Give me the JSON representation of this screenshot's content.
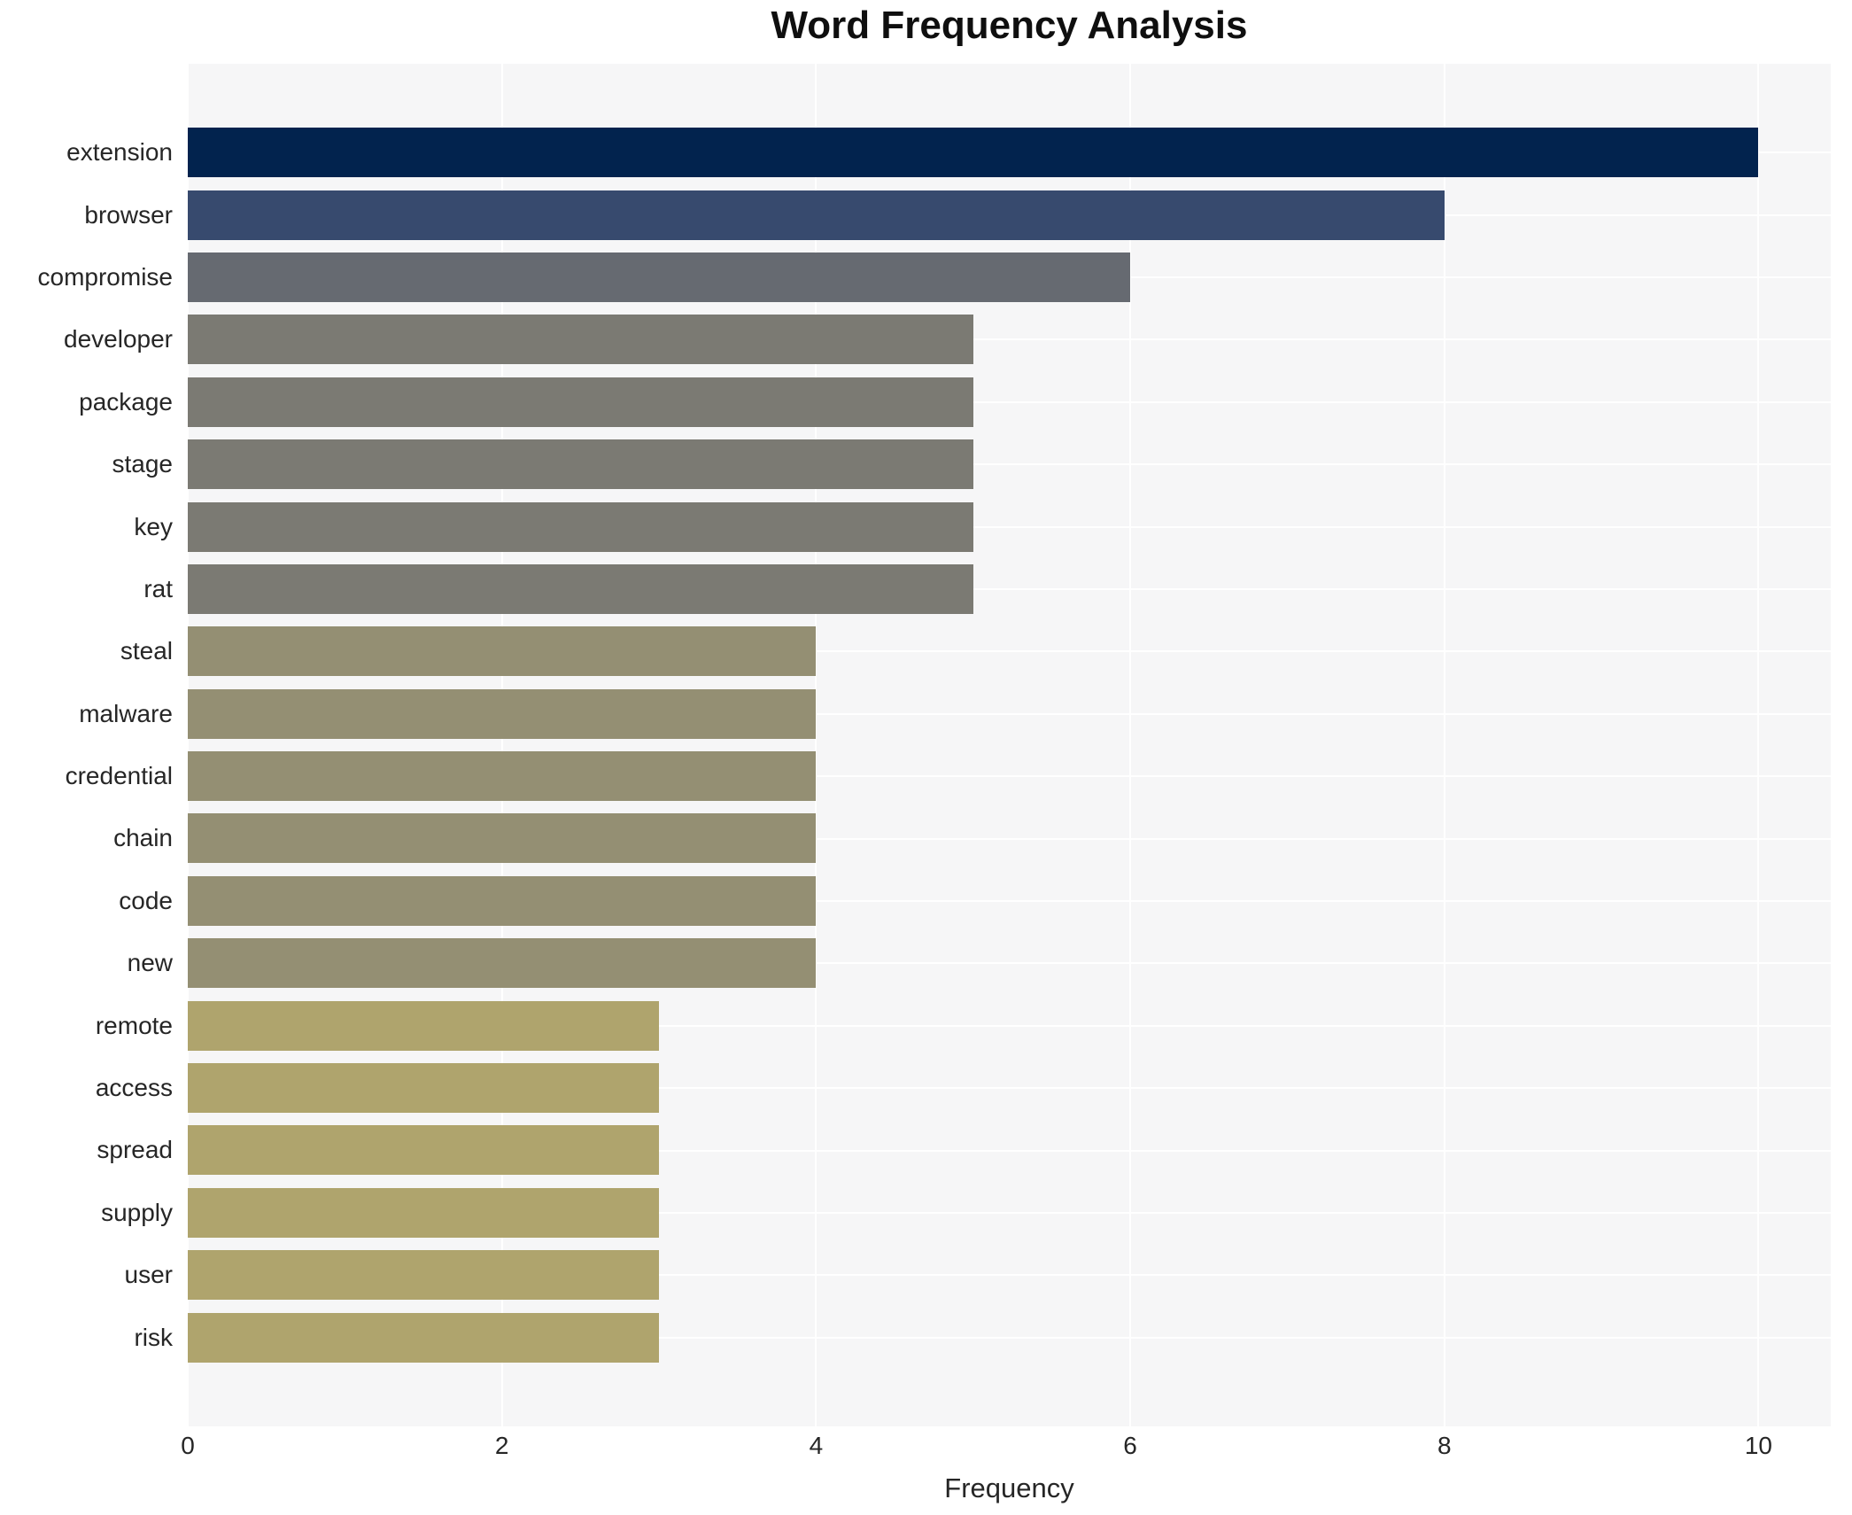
{
  "chart_data": {
    "type": "bar",
    "orientation": "horizontal",
    "title": "Word Frequency Analysis",
    "xlabel": "Frequency",
    "ylabel": "",
    "categories": [
      "extension",
      "browser",
      "compromise",
      "developer",
      "package",
      "stage",
      "key",
      "rat",
      "steal",
      "malware",
      "credential",
      "chain",
      "code",
      "new",
      "remote",
      "access",
      "spread",
      "supply",
      "user",
      "risk"
    ],
    "values": [
      10,
      8,
      6,
      5,
      5,
      5,
      5,
      5,
      4,
      4,
      4,
      4,
      4,
      4,
      3,
      3,
      3,
      3,
      3,
      3
    ],
    "bar_colors": [
      "#02234e",
      "#374a6e",
      "#666a71",
      "#7b7a73",
      "#7b7a73",
      "#7b7a73",
      "#7b7a73",
      "#7b7a73",
      "#948f73",
      "#948f73",
      "#948f73",
      "#948f73",
      "#948f73",
      "#948f73",
      "#afa46d",
      "#afa46d",
      "#afa46d",
      "#afa46d",
      "#afa46d",
      "#afa46d"
    ],
    "xticks": [
      0,
      2,
      4,
      6,
      8,
      10
    ],
    "xlim": [
      0,
      10.46
    ],
    "grid": true,
    "legend_position": "none",
    "plot_background": "#f6f6f7",
    "grid_color": "#ffffff",
    "tick_text_color": "#262626",
    "title_color": "#0f0f0f"
  }
}
